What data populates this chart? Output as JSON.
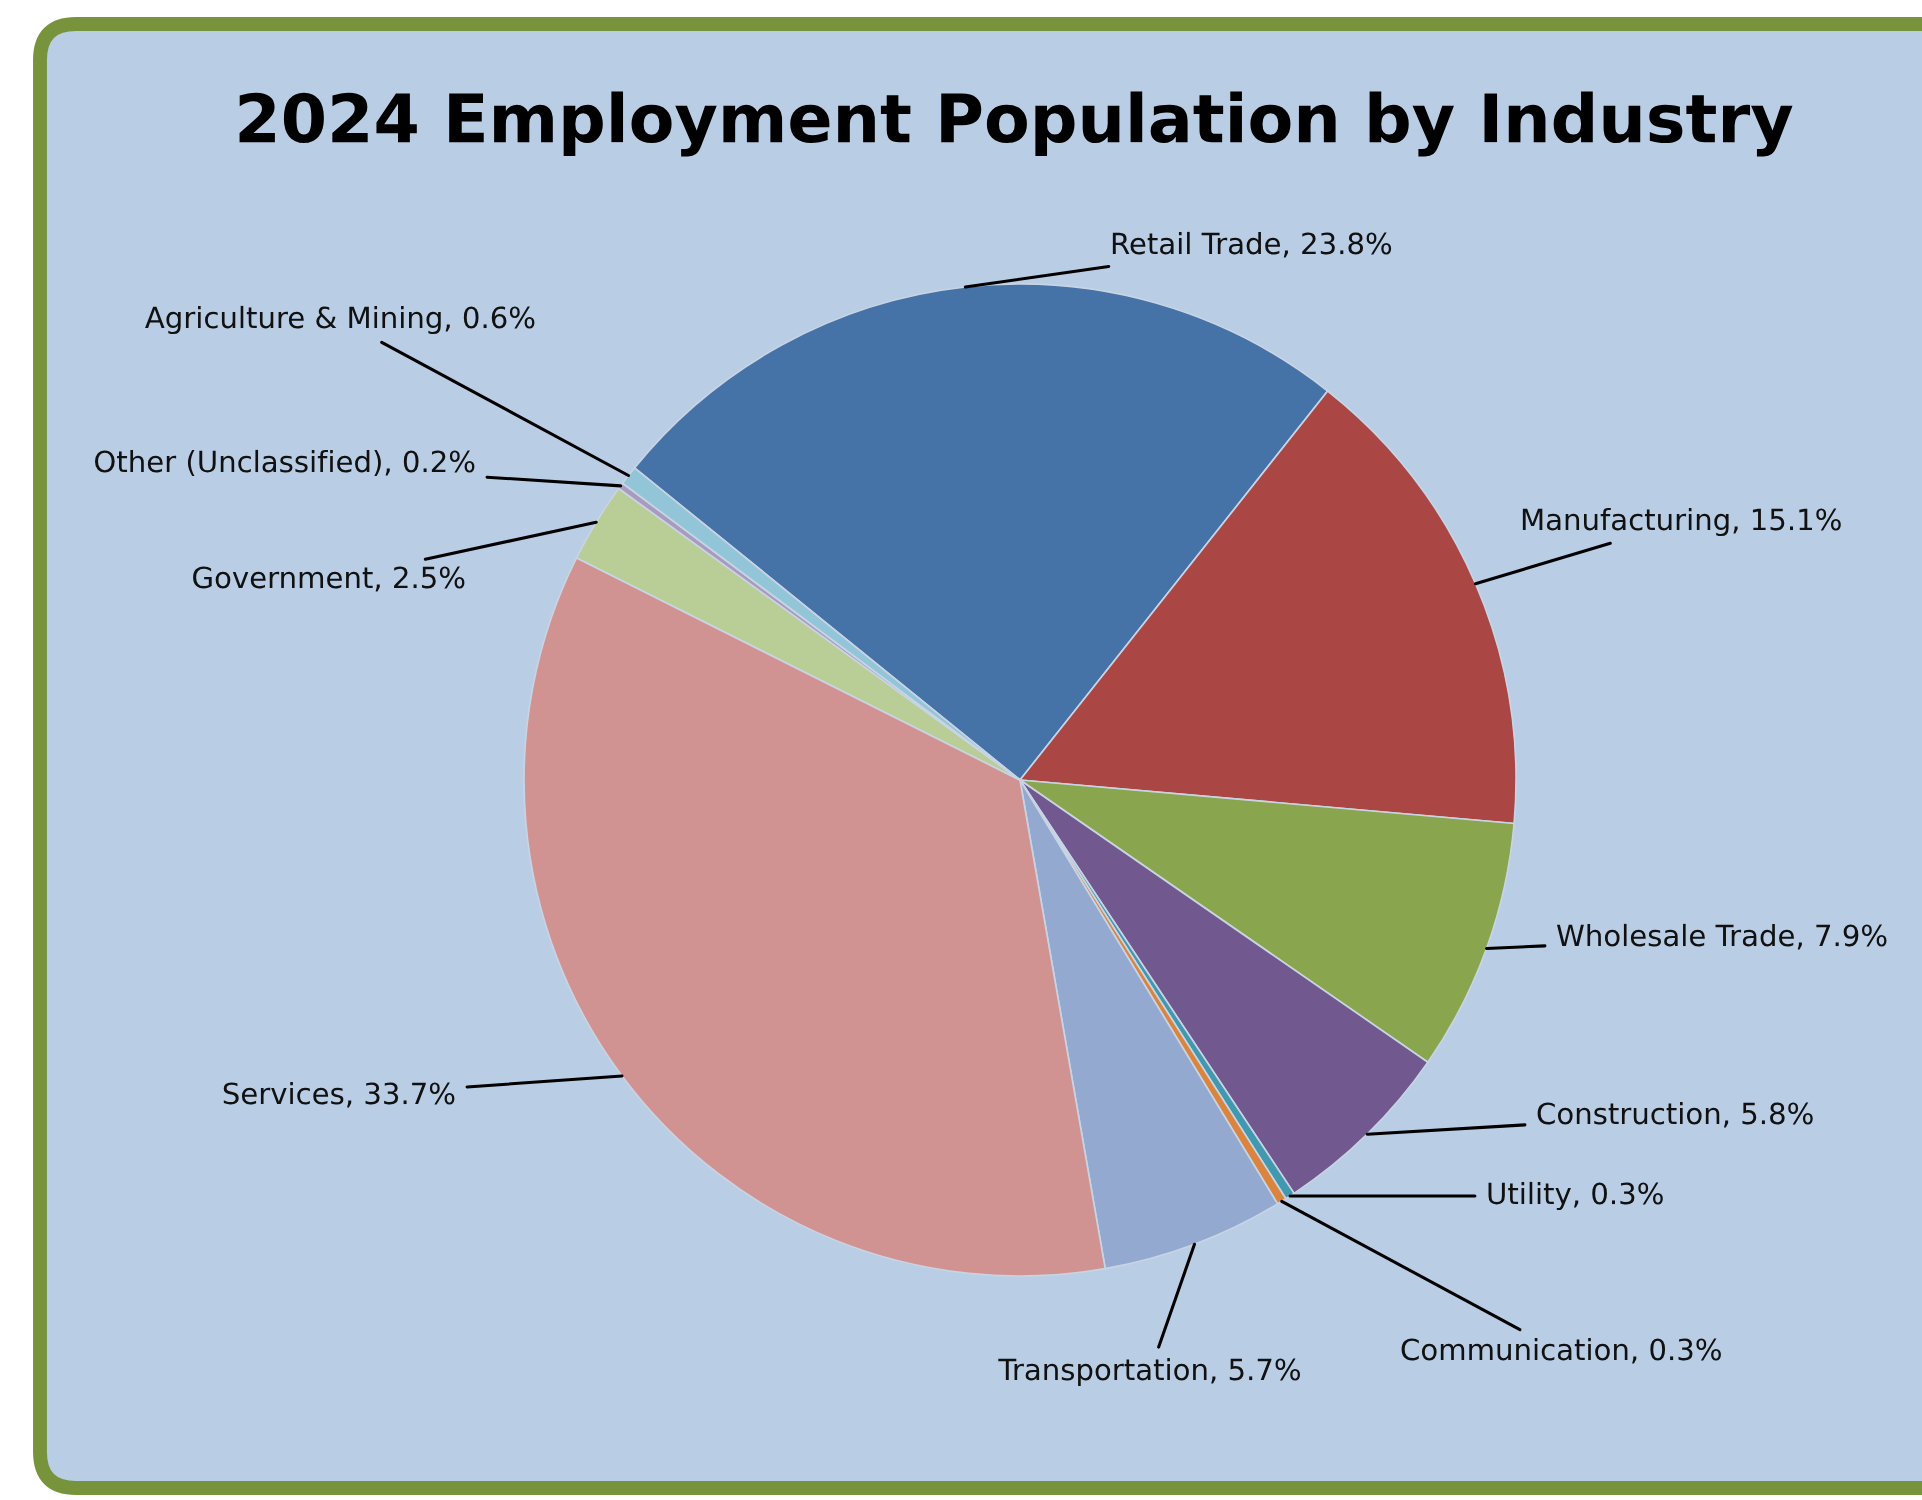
{
  "chart_data": {
    "type": "pie",
    "title": "2024 Employment Population by Industry",
    "categories": [
      "Retail Trade",
      "Manufacturing",
      "Wholesale Trade",
      "Construction",
      "Utility",
      "Communication",
      "Transportation",
      "Services",
      "Government",
      "Other (Unclassified)",
      "Agriculture & Mining"
    ],
    "values": [
      23.8,
      15.1,
      7.9,
      5.8,
      0.3,
      0.3,
      5.7,
      33.7,
      2.5,
      0.2,
      0.6
    ],
    "value_labels": [
      "23.8%",
      "15.1%",
      "7.9%",
      "5.8%",
      "0.3%",
      "0.3%",
      "5.7%",
      "33.7%",
      "2.5%",
      "0.2%",
      "0.6%"
    ],
    "colors": [
      "#4572a7",
      "#aa4643",
      "#89a54e",
      "#71588f",
      "#4198af",
      "#db843d",
      "#93a9cf",
      "#d19392",
      "#b9cd96",
      "#a99bbd",
      "#92c5d8"
    ],
    "legend": false
  }
}
